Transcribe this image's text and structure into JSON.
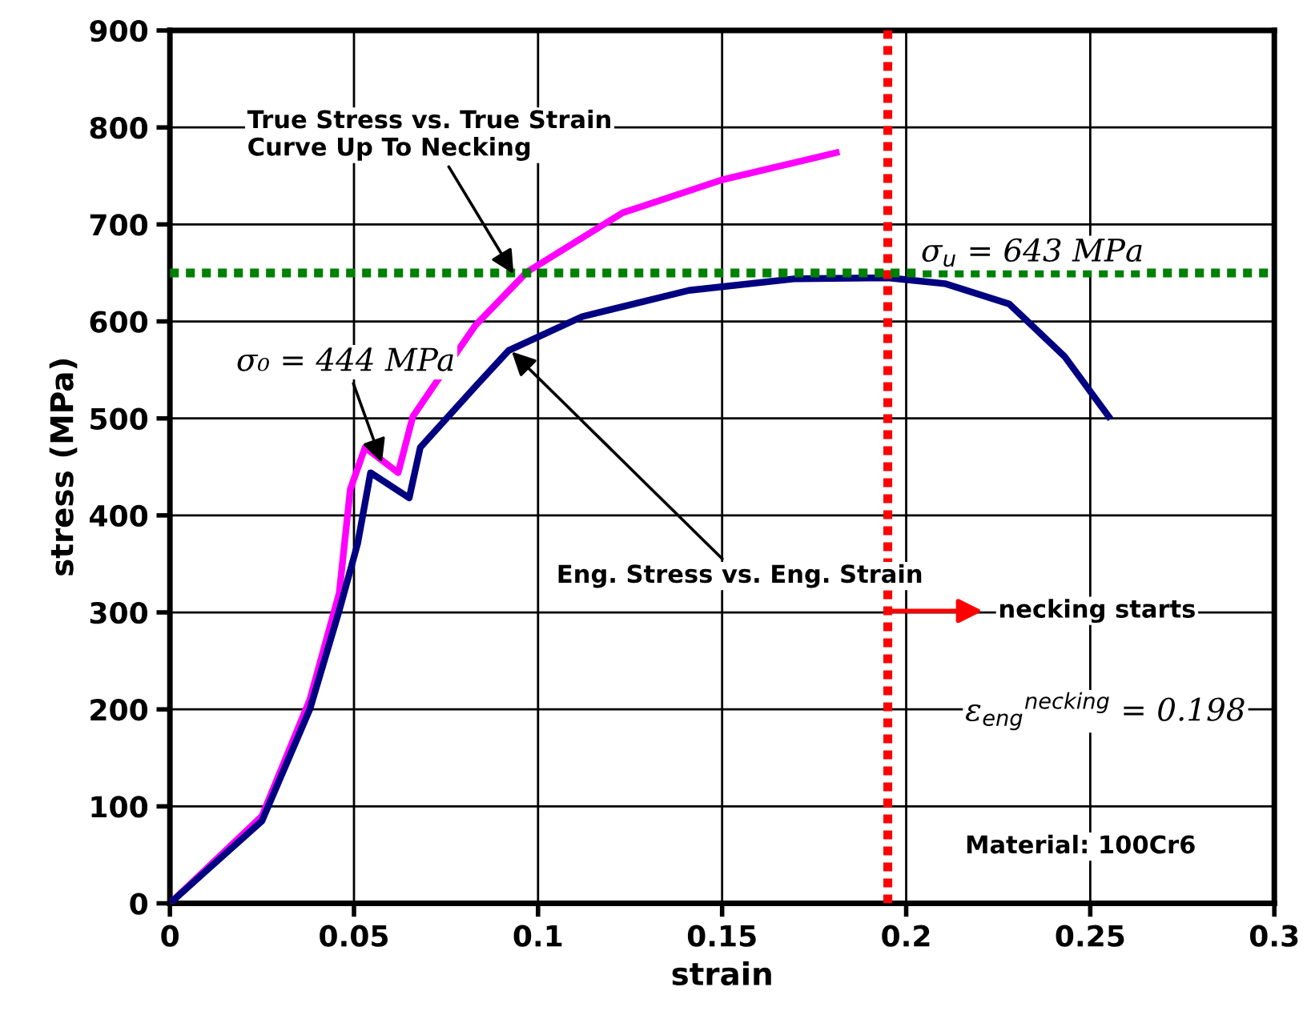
{
  "chart_data": {
    "type": "line",
    "xlabel": "strain",
    "ylabel": "stress (MPa)",
    "xlim": [
      0,
      0.3
    ],
    "ylim": [
      0,
      900
    ],
    "xticks": [
      0,
      0.05,
      0.1,
      0.15,
      0.2,
      0.25,
      0.3
    ],
    "yticks": [
      0,
      100,
      200,
      300,
      400,
      500,
      600,
      700,
      800,
      900
    ],
    "grid": true,
    "marker": "none",
    "line_style": "solid",
    "series": [
      {
        "color": "#ff00ff",
        "x": [
          0,
          0.025,
          0.038,
          0.046,
          0.049,
          0.053,
          0.062,
          0.066,
          0.073,
          0.083,
          0.097,
          0.123,
          0.15,
          0.181
        ],
        "values": [
          0,
          90,
          210,
          320,
          427,
          470,
          444,
          502,
          541,
          596,
          651,
          712,
          746,
          774
        ]
      },
      {
        "color": "#000080",
        "x": [
          0,
          0.025,
          0.038,
          0.046,
          0.051,
          0.0545,
          0.065,
          0.068,
          0.083,
          0.092,
          0.112,
          0.141,
          0.17,
          0.195,
          0.2105,
          0.228,
          0.243,
          0.255
        ],
        "values": [
          0,
          85,
          200,
          302,
          371,
          444,
          418,
          470,
          533,
          570,
          605,
          632,
          644,
          645,
          639,
          618,
          564,
          502
        ]
      }
    ],
    "ref_lines": [
      {
        "axis": "x",
        "value": 0.195,
        "color": "#ff0000",
        "line_style": "dotted"
      },
      {
        "axis": "y",
        "value": 650,
        "color": "#008000",
        "line_style": "dotted"
      }
    ],
    "annotations": [
      {
        "text": "True Stress vs. True Strain\nCurve Up To Necking",
        "x": 0.094,
        "y": 645
      },
      {
        "text": "σ₀ = 444 MPa",
        "x": 0.058,
        "y": 450
      },
      {
        "text": "Eng. Stress vs. Eng. Strain",
        "x": 0.092,
        "y": 572
      },
      "σ$_{u}$ = 643 MPa",
      "necking starts",
      "ε$_{eng}$$^{necking}$ = 0.198",
      "Material: 100Cr6"
    ]
  }
}
